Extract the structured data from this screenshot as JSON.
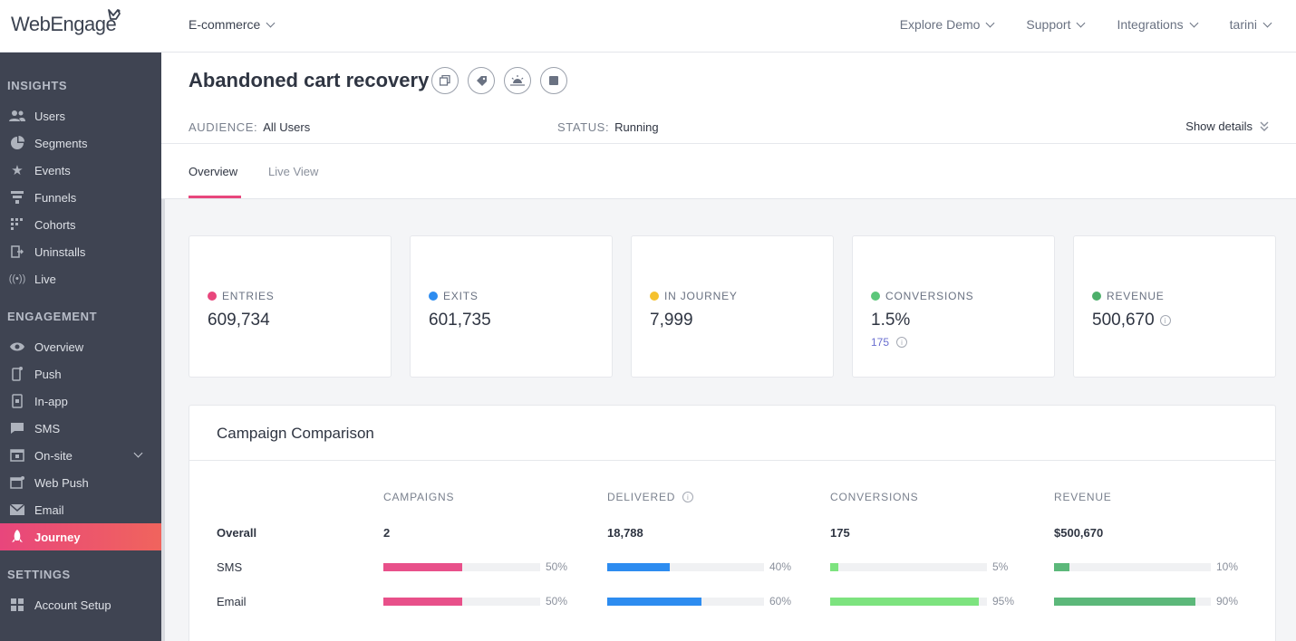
{
  "topbar": {
    "logo_text": "WebEngage",
    "project": "E-commerce",
    "nav": [
      "Explore Demo",
      "Support",
      "Integrations",
      "tarini"
    ]
  },
  "sidebar": {
    "insights_title": "INSIGHTS",
    "insights": [
      {
        "label": "Users",
        "icon": "users-icon"
      },
      {
        "label": "Segments",
        "icon": "pie-icon"
      },
      {
        "label": "Events",
        "icon": "star-icon"
      },
      {
        "label": "Funnels",
        "icon": "funnel-icon"
      },
      {
        "label": "Cohorts",
        "icon": "grid-icon"
      },
      {
        "label": "Uninstalls",
        "icon": "uninstall-icon"
      },
      {
        "label": "Live",
        "icon": "live-icon"
      }
    ],
    "engagement_title": "ENGAGEMENT",
    "engagement": [
      {
        "label": "Overview",
        "icon": "eye-icon"
      },
      {
        "label": "Push",
        "icon": "phone-icon"
      },
      {
        "label": "In-app",
        "icon": "inapp-icon"
      },
      {
        "label": "SMS",
        "icon": "chat-icon"
      },
      {
        "label": "On-site",
        "icon": "window-icon"
      },
      {
        "label": "Web Push",
        "icon": "browser-icon"
      },
      {
        "label": "Email",
        "icon": "mail-icon"
      },
      {
        "label": "Journey",
        "icon": "rocket-icon"
      }
    ],
    "settings_title": "SETTINGS",
    "settings": [
      {
        "label": "Account Setup",
        "icon": "settings-grid-icon"
      }
    ]
  },
  "header": {
    "title": "Abandoned cart recovery",
    "audience_label": "AUDIENCE:",
    "audience_value": "All Users",
    "status_label": "STATUS:",
    "status_value": "Running",
    "show_details": "Show details",
    "tabs": [
      "Overview",
      "Live View"
    ]
  },
  "stats": [
    {
      "label": "ENTRIES",
      "value": "609,734",
      "color": "#e8467c"
    },
    {
      "label": "EXITS",
      "value": "601,735",
      "color": "#2d8cf0"
    },
    {
      "label": "IN JOURNEY",
      "value": "7,999",
      "color": "#f5c12e"
    },
    {
      "label": "CONVERSIONS",
      "value": "1.5%",
      "sub": "175",
      "color": "#5cc77a"
    },
    {
      "label": "REVENUE",
      "value": "500,670",
      "color": "#4caf6a"
    }
  ],
  "comparison": {
    "title": "Campaign Comparison",
    "columns": [
      "CAMPAIGNS",
      "DELIVERED",
      "CONVERSIONS",
      "REVENUE"
    ],
    "overall": {
      "label": "Overall",
      "values": [
        "2",
        "18,788",
        "175",
        "$500,670"
      ]
    },
    "rows": [
      {
        "label": "SMS",
        "percents": [
          50,
          40,
          5,
          10
        ],
        "pct_labels": [
          "50%",
          "40%",
          "5%",
          "10%"
        ]
      },
      {
        "label": "Email",
        "percents": [
          50,
          60,
          95,
          90
        ],
        "pct_labels": [
          "50%",
          "60%",
          "95%",
          "90%"
        ]
      }
    ],
    "bar_colors": [
      "#e8508a",
      "#2d8cf0",
      "#7de37f",
      "#5cb87a"
    ]
  }
}
